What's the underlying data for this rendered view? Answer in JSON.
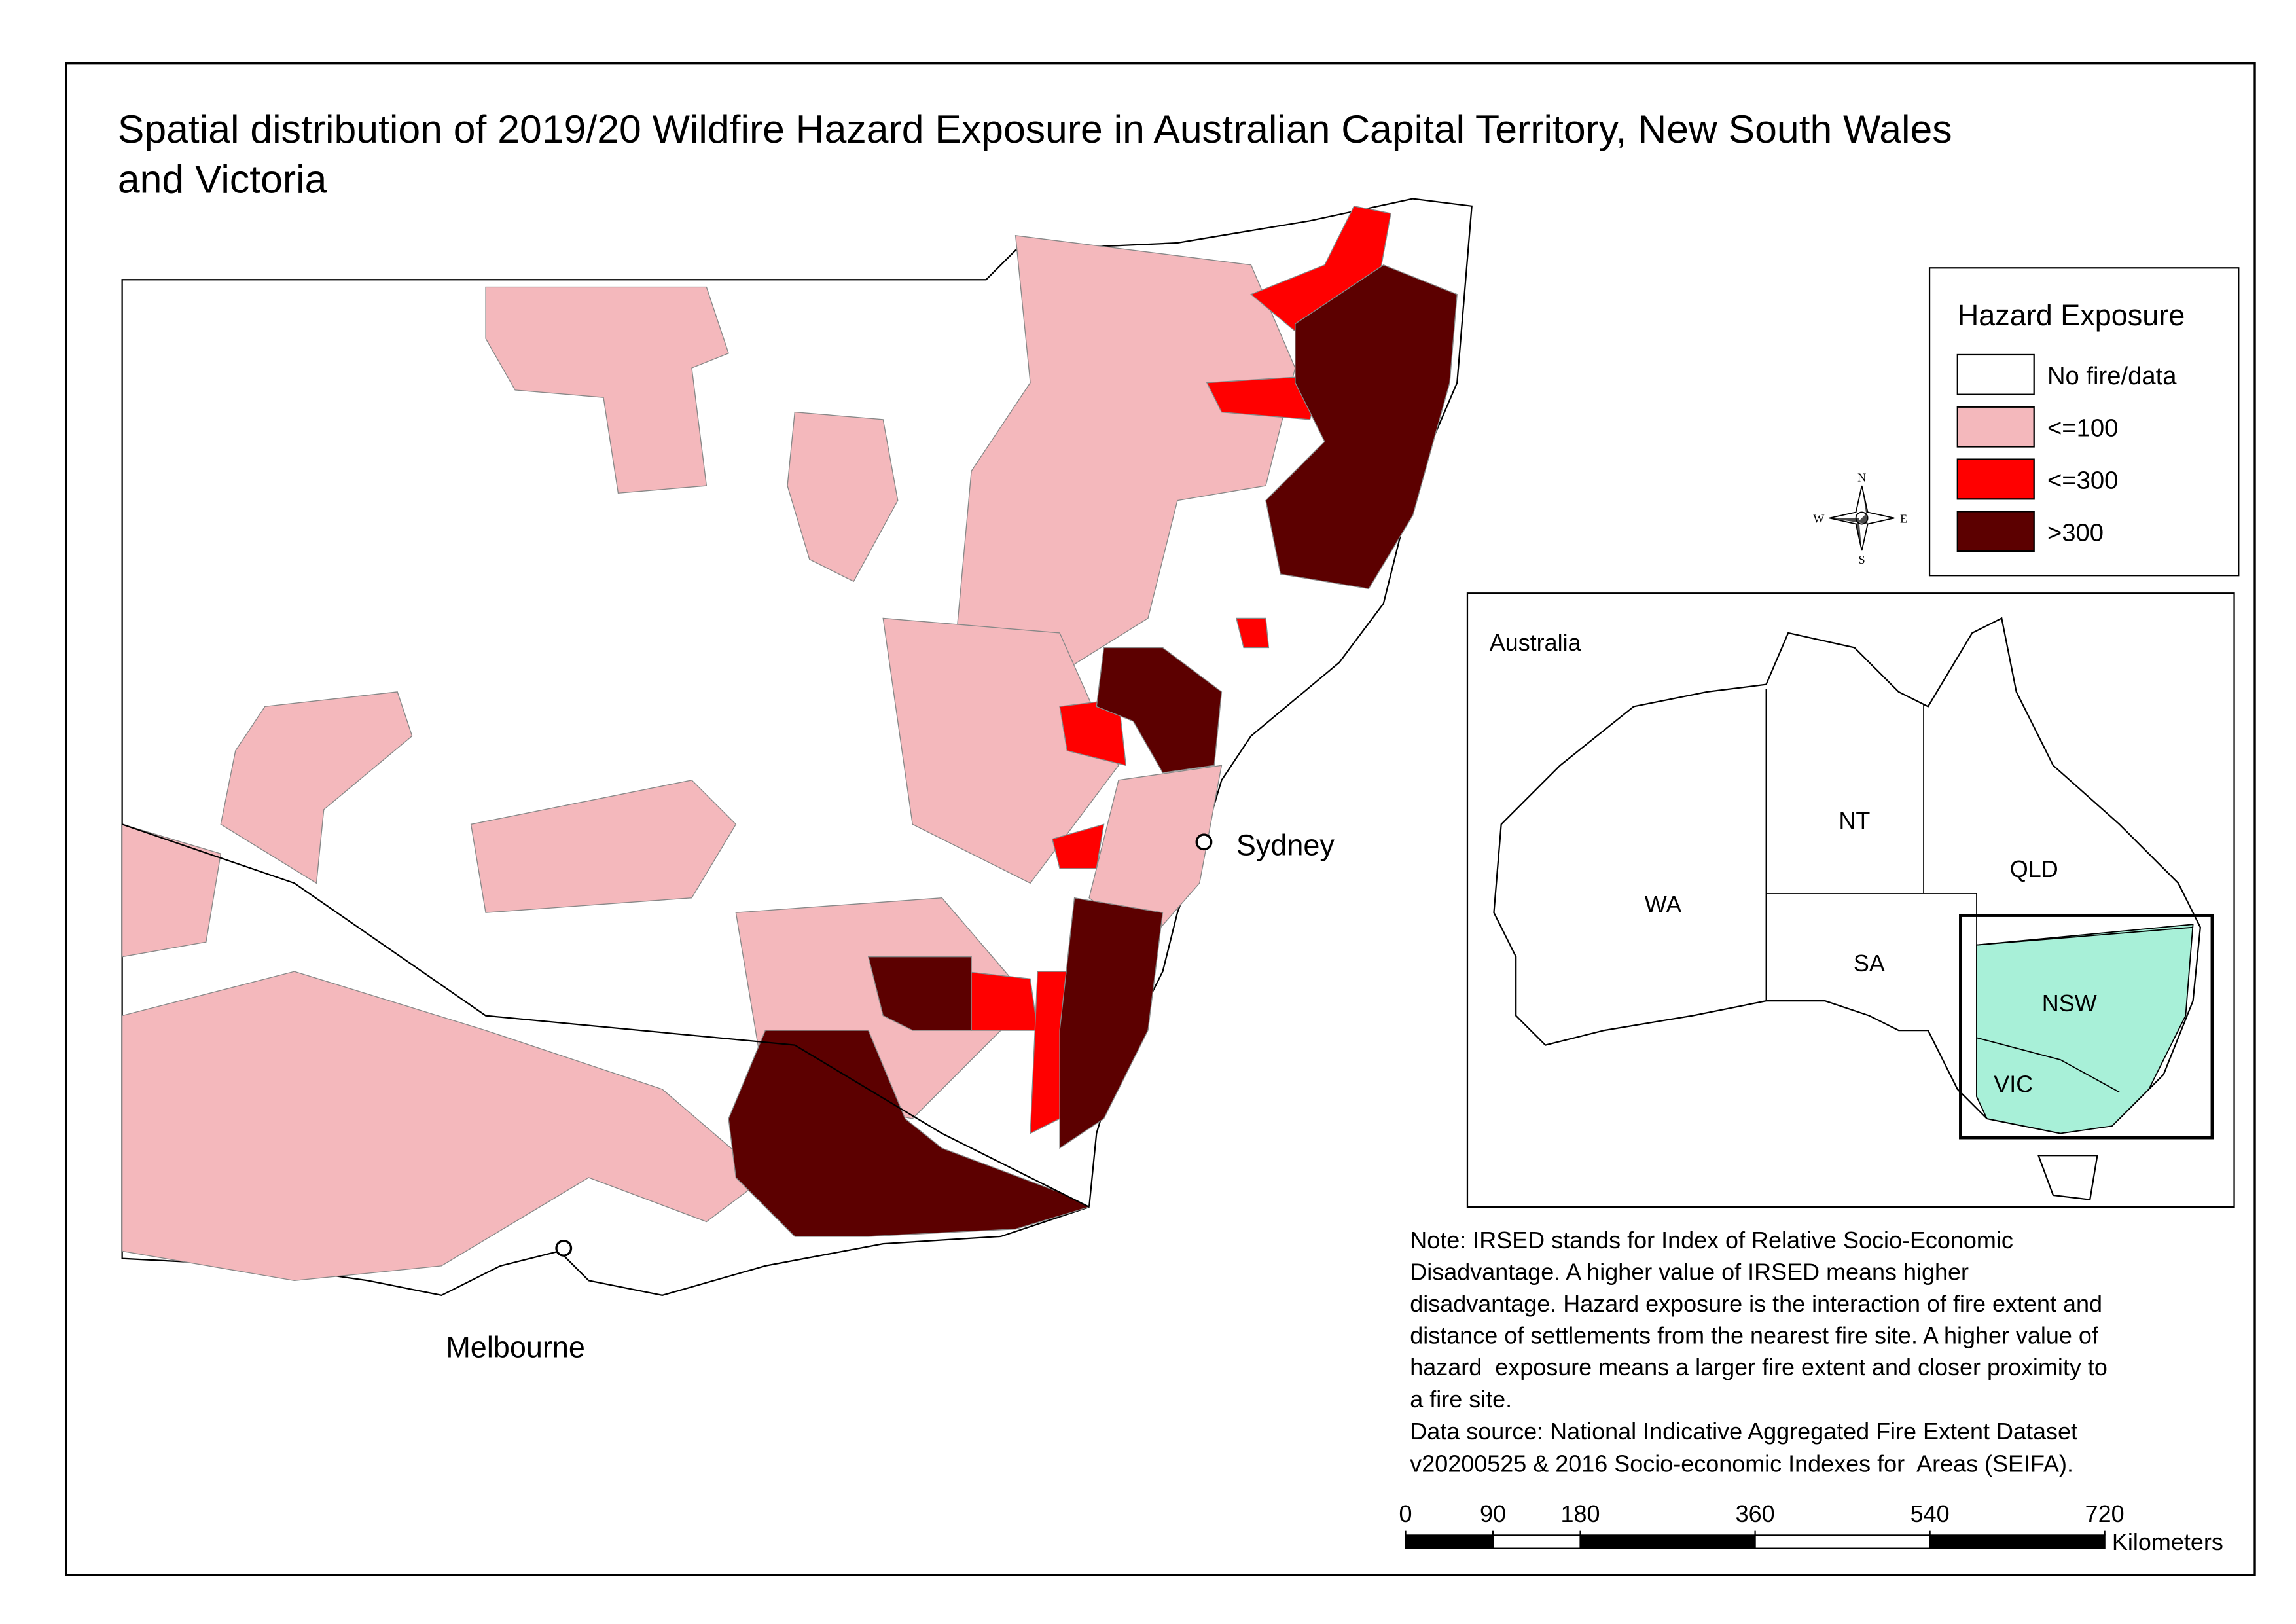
{
  "header": {
    "title_lines": [
      "Spatial distribution of 2019/20 Wildfire Hazard Exposure in Australian Capital Territory, New South Wales",
      "and Victoria"
    ]
  },
  "legend": {
    "title": "Hazard Exposure",
    "items": [
      {
        "label": "No fire/data",
        "color": "#ffffff"
      },
      {
        "label": "<=100",
        "color": "#f4b8bc"
      },
      {
        "label": "<=300",
        "color": "#ff0000"
      },
      {
        "label": ">300",
        "color": "#5c0000"
      }
    ]
  },
  "map": {
    "places": [
      "Sydney",
      "Melbourne"
    ]
  },
  "compass": [
    "N",
    "E",
    "S",
    "W"
  ],
  "inset": {
    "title": "Australia",
    "regions": [
      "WA",
      "NT",
      "QLD",
      "SA",
      "NSW",
      "VIC"
    ]
  },
  "note_lines": [
    "Note: IRSED stands for Index of Relative Socio-Economic",
    "Disadvantage. A higher value of IRSED means higher",
    "disadvantage. Hazard exposure is the interaction of fire extent and",
    "distance of settlements from the nearest fire site. A higher value of",
    "hazard  exposure means a larger fire extent and closer proximity to",
    "a fire site."
  ],
  "source_lines": [
    "Data source: National Indicative Aggregated Fire Extent Dataset",
    "v20200525 & 2016 Socio-economic Indexes for  Areas (SEIFA)."
  ],
  "scale_bar": {
    "ticks": [
      0,
      90,
      180,
      360,
      540,
      720
    ],
    "unit": "Kilometers"
  }
}
